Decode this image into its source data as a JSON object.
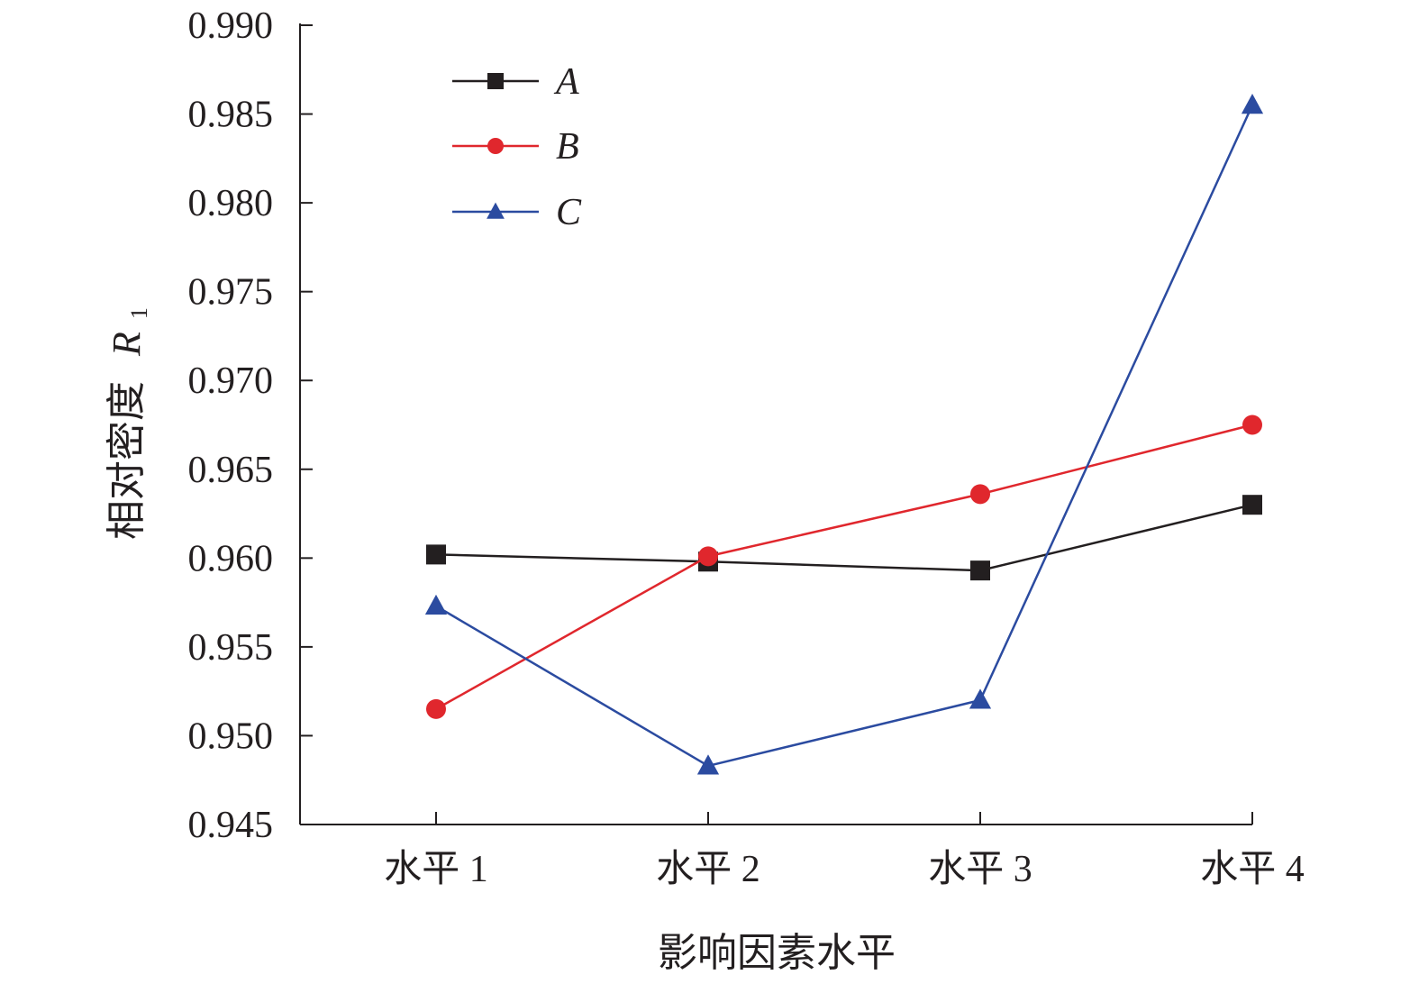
{
  "chart_data": {
    "type": "line",
    "categories": [
      "水平 1",
      "水平 2",
      "水平 3",
      "水平 4"
    ],
    "series": [
      {
        "name": "A",
        "marker": "square",
        "color": "#231f20",
        "values": [
          0.9602,
          0.9598,
          0.9593,
          0.963
        ]
      },
      {
        "name": "B",
        "marker": "circle",
        "color": "#e0272d",
        "values": [
          0.9515,
          0.9601,
          0.9636,
          0.9675
        ]
      },
      {
        "name": "C",
        "marker": "triangle",
        "color": "#2b4ba0",
        "values": [
          0.9573,
          0.9483,
          0.952,
          0.9855
        ]
      }
    ],
    "title": "",
    "xlabel": "影响因素水平",
    "ylabel": "相对密度",
    "ylabel_symbol": "R",
    "ylabel_subscript": "1",
    "ylim": [
      0.945,
      0.99
    ],
    "yticks": [
      0.945,
      0.95,
      0.955,
      0.96,
      0.965,
      0.97,
      0.975,
      0.98,
      0.985,
      0.99
    ],
    "ytick_labels": [
      "0.945",
      "0.950",
      "0.955",
      "0.960",
      "0.965",
      "0.970",
      "0.975",
      "0.980",
      "0.985",
      "0.990"
    ],
    "grid": false,
    "legend_position": "top-left"
  }
}
